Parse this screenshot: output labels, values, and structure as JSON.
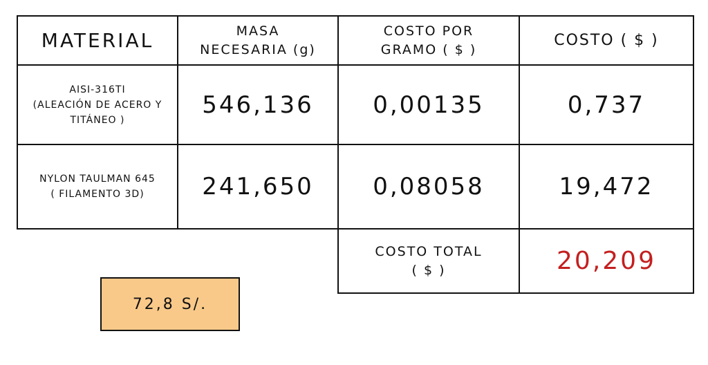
{
  "table": {
    "headers": {
      "material": "MATERIAL",
      "mass_line1": "MASA",
      "mass_line2": "NECESARIA (g)",
      "cost_per_gram_line1": "COSTO POR",
      "cost_per_gram_line2": "GRAMO ( $ )",
      "cost": "COSTO ( $ )"
    },
    "rows": [
      {
        "material_line1": "AISI-316TI",
        "material_line2": "(ALEACIÓN DE ACERO Y",
        "material_line3": "TITÁNEO )",
        "mass": "546,136",
        "cost_per_gram": "0,00135",
        "cost": "0,737"
      },
      {
        "material_line1": "NYLON TAULMAN 645",
        "material_line2": "( FILAMENTO 3D)",
        "mass": "241,650",
        "cost_per_gram": "0,08058",
        "cost": "19,472"
      }
    ],
    "total": {
      "label_line1": "COSTO TOTAL",
      "label_line2": "( $ )",
      "value": "20,209"
    }
  },
  "note": {
    "text": "72,8 S/."
  },
  "colors": {
    "ink": "#111111",
    "total_value": "#c41f1f",
    "note_fill": "#f9c98a"
  }
}
